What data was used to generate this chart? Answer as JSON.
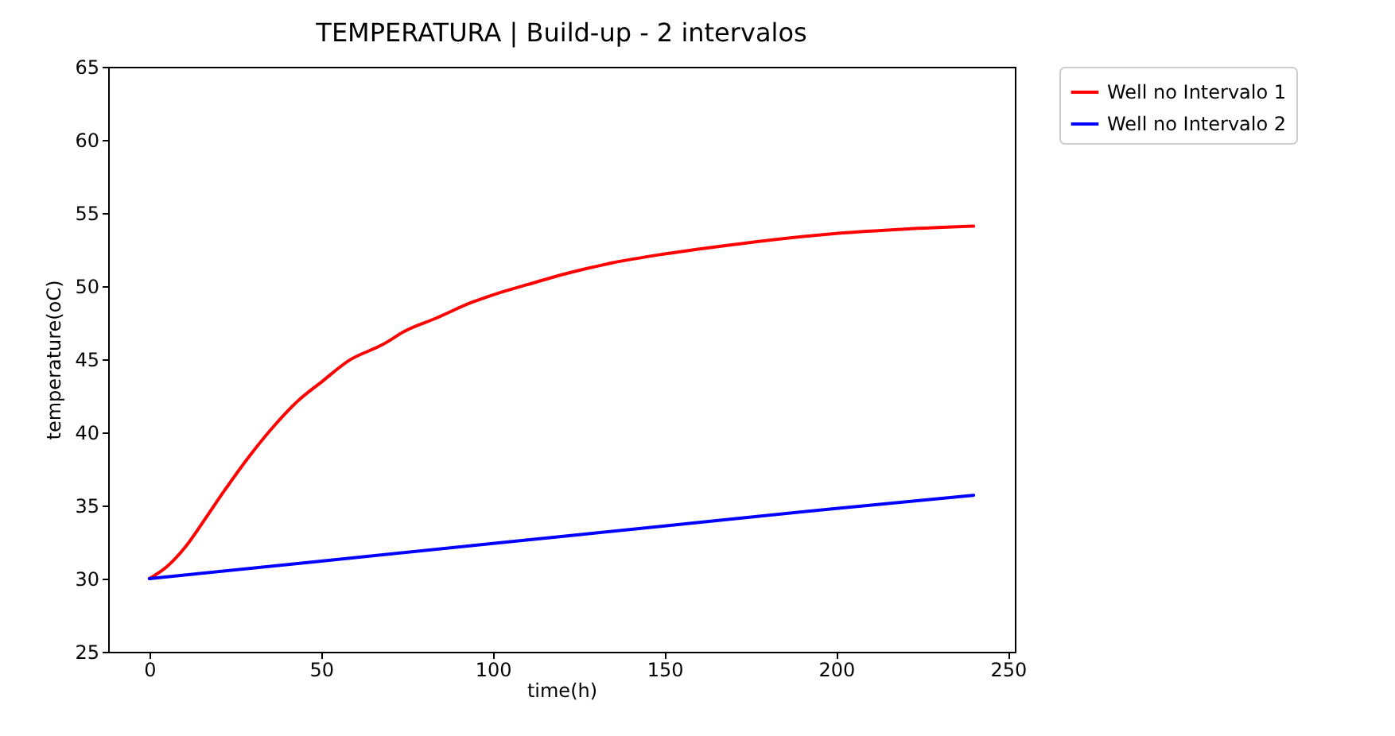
{
  "chart_data": {
    "type": "line",
    "title": "TEMPERATURA | Build-up - 2 intervalos",
    "xlabel": "time(h)",
    "ylabel": "temperature(oC)",
    "xlim": [
      -12,
      252
    ],
    "xticks": [
      0,
      50,
      100,
      150,
      200,
      250
    ],
    "ylim": [
      25,
      65
    ],
    "yticks": [
      25,
      30,
      35,
      40,
      45,
      50,
      55,
      60,
      65
    ],
    "grid": false,
    "legend": "top right",
    "line_style": "solid",
    "marker": "none",
    "series": [
      {
        "name": "Well no Intervalo 1",
        "color": "#ff0000",
        "x": [
          0,
          5,
          10.6,
          16,
          21.5,
          29.2,
          36.9,
          43,
          50.4,
          58,
          67.9,
          75,
          83.4,
          94,
          100,
          110,
          122,
          135,
          150,
          172,
          200,
          220,
          240
        ],
        "values": [
          30,
          30.8,
          32.2,
          34,
          35.9,
          38.4,
          40.6,
          42.1,
          43.5,
          44.9,
          46,
          47,
          47.8,
          48.9,
          49.4,
          50.1,
          50.9,
          51.6,
          52.2,
          52.9,
          53.6,
          53.9,
          54.1
        ]
      },
      {
        "name": "Well no Intervalo 2",
        "color": "#0000ff",
        "x": [
          0,
          50,
          100,
          150,
          200,
          240
        ],
        "values": [
          30,
          31.2,
          32.4,
          33.6,
          34.8,
          35.7
        ]
      }
    ]
  }
}
